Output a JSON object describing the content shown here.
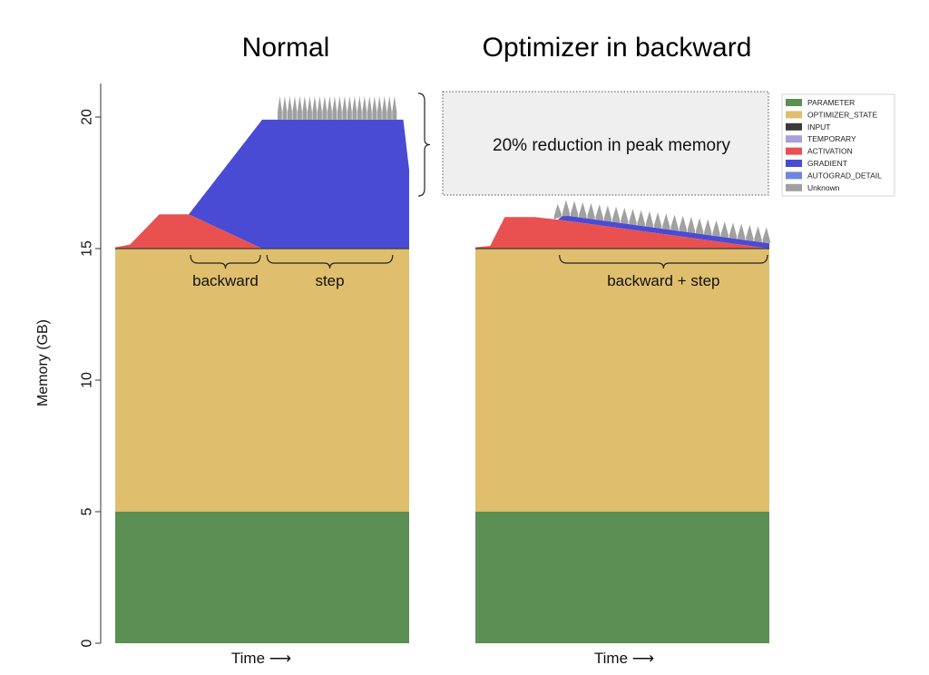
{
  "chart_data": {
    "type": "area",
    "stacked": true,
    "ylabel": "Memory (GB)",
    "ylim": [
      0,
      21.5
    ],
    "yticks": [
      "0",
      "5",
      "10",
      "15",
      "20"
    ],
    "colors": {
      "PARAMETER": "#5b8f53",
      "OPTIMIZER_STATE": "#dfbf6d",
      "INPUT": "#3a3a3a",
      "TEMPORARY": "#a7a0dc",
      "ACTIVATION": "#e8514f",
      "GRADIENT": "#4a4bd4",
      "AUTOGRAD_DETAIL": "#6f86e0",
      "Unknown": "#a0a0a0"
    },
    "legend": {
      "placement": "upper-right",
      "entries": [
        "PARAMETER",
        "OPTIMIZER_STATE",
        "INPUT",
        "TEMPORARY",
        "ACTIVATION",
        "GRADIENT",
        "AUTOGRAD_DETAIL",
        "Unknown"
      ]
    },
    "panels": [
      {
        "title": "Normal",
        "xlabel": "Time ⟶",
        "base": {
          "PARAMETER": 5.0,
          "OPTIMIZER_STATE": 10.0
        },
        "activation": {
          "t": [
            0,
            5,
            15,
            25,
            50,
            100
          ],
          "v": [
            0.05,
            0.15,
            1.3,
            1.3,
            0.0,
            0.0
          ]
        },
        "gradient": {
          "t": [
            0,
            25,
            50,
            98,
            100
          ],
          "v": [
            0.0,
            0.0,
            4.9,
            4.9,
            3.0
          ]
        },
        "unknown_spikes": {
          "count": 24,
          "t_start": 56,
          "t_end": 95,
          "base": 0.3,
          "peak": 0.9
        },
        "phases": [
          {
            "label": "backward",
            "t_start": 25,
            "t_end": 50
          },
          {
            "label": "step",
            "t_start": 51,
            "t_end": 95
          }
        ],
        "annotation": {
          "text": "20% reduction in peak memory",
          "y_from": 17.0,
          "y_to": 20.9
        }
      },
      {
        "title": "Optimizer in backward",
        "xlabel": "Time ⟶",
        "base": {
          "PARAMETER": 5.0,
          "OPTIMIZER_STATE": 10.0
        },
        "activation": {
          "t": [
            0,
            5,
            10,
            20,
            28,
            100
          ],
          "v": [
            0.05,
            0.1,
            1.2,
            1.2,
            1.1,
            0.0
          ]
        },
        "gradient": {
          "t": [
            0,
            28,
            30,
            100
          ],
          "v": [
            0.0,
            0.0,
            0.2,
            0.2
          ]
        },
        "unknown_spikes": {
          "count": 26,
          "t_start": 28,
          "t_end": 99,
          "base": 0.1,
          "peak": 0.6
        },
        "phases": [
          {
            "label": "backward + step",
            "t_start": 28,
            "t_end": 100
          }
        ]
      }
    ]
  }
}
